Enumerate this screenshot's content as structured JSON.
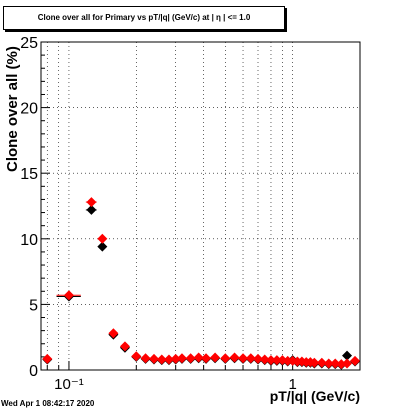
{
  "title": "Clone  over all for Primary vs pT/|q| (GeV/c) at |  η | <= 1.0",
  "timestamp": "Wed Apr  1 08:42:17 2020",
  "chart_data": {
    "type": "scatter",
    "title": "Clone  over all for Primary vs pT/|q| (GeV/c) at |  η | <= 1.0",
    "xlabel": "pT/|q| (GeV/c)",
    "ylabel": "Clone  over all (%)",
    "xscale": "log",
    "xlim": [
      0.075,
      2.0
    ],
    "ylim": [
      0,
      25
    ],
    "grid": true,
    "x_tick_labels": [
      {
        "value": 0.1,
        "label": "10⁻¹"
      },
      {
        "value": 1,
        "label": "1"
      }
    ],
    "y_tick_labels": [
      {
        "value": 0,
        "label": "0"
      },
      {
        "value": 5,
        "label": "5"
      },
      {
        "value": 10,
        "label": "10"
      },
      {
        "value": 15,
        "label": "15"
      },
      {
        "value": 20,
        "label": "20"
      },
      {
        "value": 25,
        "label": "25"
      }
    ],
    "series": [
      {
        "color": "#000000",
        "marker": "diamond",
        "points": [
          {
            "x": 0.08,
            "y": 0.8
          },
          {
            "x": 0.1,
            "y": 5.6,
            "xerr": [
              0.088,
              0.113
            ]
          },
          {
            "x": 0.126,
            "y": 12.2,
            "xerr": [
              0.119,
              0.133
            ]
          },
          {
            "x": 0.141,
            "y": 9.4
          },
          {
            "x": 0.158,
            "y": 2.7
          },
          {
            "x": 0.178,
            "y": 1.7
          },
          {
            "x": 0.2,
            "y": 1.0
          },
          {
            "x": 0.22,
            "y": 0.85
          },
          {
            "x": 0.24,
            "y": 0.8
          },
          {
            "x": 0.26,
            "y": 0.75
          },
          {
            "x": 0.28,
            "y": 0.75
          },
          {
            "x": 0.3,
            "y": 0.8
          },
          {
            "x": 0.32,
            "y": 0.85
          },
          {
            "x": 0.35,
            "y": 0.85
          },
          {
            "x": 0.38,
            "y": 0.9
          },
          {
            "x": 0.41,
            "y": 0.85
          },
          {
            "x": 0.45,
            "y": 0.9
          },
          {
            "x": 0.5,
            "y": 0.85
          },
          {
            "x": 0.55,
            "y": 0.9
          },
          {
            "x": 0.6,
            "y": 0.85
          },
          {
            "x": 0.65,
            "y": 0.85
          },
          {
            "x": 0.7,
            "y": 0.8
          },
          {
            "x": 0.75,
            "y": 0.75
          },
          {
            "x": 0.8,
            "y": 0.7
          },
          {
            "x": 0.85,
            "y": 0.7
          },
          {
            "x": 0.9,
            "y": 0.7
          },
          {
            "x": 0.95,
            "y": 0.65
          },
          {
            "x": 1.0,
            "y": 0.75
          },
          {
            "x": 1.05,
            "y": 0.6
          },
          {
            "x": 1.1,
            "y": 0.6
          },
          {
            "x": 1.15,
            "y": 0.55
          },
          {
            "x": 1.2,
            "y": 0.55
          },
          {
            "x": 1.25,
            "y": 0.5
          },
          {
            "x": 1.35,
            "y": 0.5
          },
          {
            "x": 1.45,
            "y": 0.45
          },
          {
            "x": 1.55,
            "y": 0.45
          },
          {
            "x": 1.65,
            "y": 0.4
          },
          {
            "x": 1.75,
            "y": 1.1
          },
          {
            "x": 1.9,
            "y": 0.65
          }
        ]
      },
      {
        "color": "#ff0000",
        "marker": "diamond",
        "points": [
          {
            "x": 0.08,
            "y": 0.85
          },
          {
            "x": 0.1,
            "y": 5.7,
            "xerr": [
              0.088,
              0.113
            ]
          },
          {
            "x": 0.126,
            "y": 12.8,
            "xerr": [
              0.119,
              0.133
            ]
          },
          {
            "x": 0.141,
            "y": 10.0
          },
          {
            "x": 0.158,
            "y": 2.8
          },
          {
            "x": 0.178,
            "y": 1.8
          },
          {
            "x": 0.2,
            "y": 1.05
          },
          {
            "x": 0.22,
            "y": 0.9
          },
          {
            "x": 0.24,
            "y": 0.85
          },
          {
            "x": 0.26,
            "y": 0.8
          },
          {
            "x": 0.28,
            "y": 0.8
          },
          {
            "x": 0.3,
            "y": 0.85
          },
          {
            "x": 0.32,
            "y": 0.9
          },
          {
            "x": 0.35,
            "y": 0.9
          },
          {
            "x": 0.38,
            "y": 0.95
          },
          {
            "x": 0.41,
            "y": 0.9
          },
          {
            "x": 0.45,
            "y": 0.95
          },
          {
            "x": 0.5,
            "y": 0.9
          },
          {
            "x": 0.55,
            "y": 0.95
          },
          {
            "x": 0.6,
            "y": 0.9
          },
          {
            "x": 0.65,
            "y": 0.9
          },
          {
            "x": 0.7,
            "y": 0.85
          },
          {
            "x": 0.75,
            "y": 0.8
          },
          {
            "x": 0.8,
            "y": 0.75
          },
          {
            "x": 0.85,
            "y": 0.75
          },
          {
            "x": 0.9,
            "y": 0.75
          },
          {
            "x": 0.95,
            "y": 0.7
          },
          {
            "x": 1.0,
            "y": 0.7
          },
          {
            "x": 1.05,
            "y": 0.65
          },
          {
            "x": 1.1,
            "y": 0.65
          },
          {
            "x": 1.15,
            "y": 0.6
          },
          {
            "x": 1.2,
            "y": 0.6
          },
          {
            "x": 1.25,
            "y": 0.55
          },
          {
            "x": 1.35,
            "y": 0.55
          },
          {
            "x": 1.45,
            "y": 0.5
          },
          {
            "x": 1.55,
            "y": 0.5
          },
          {
            "x": 1.65,
            "y": 0.45
          },
          {
            "x": 1.75,
            "y": 0.5
          },
          {
            "x": 1.9,
            "y": 0.7
          }
        ]
      }
    ]
  }
}
